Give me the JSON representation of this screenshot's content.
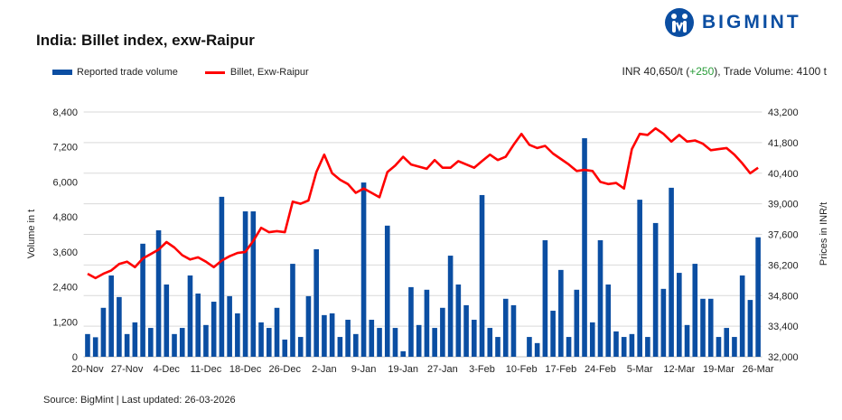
{
  "header": {
    "title": "India: Billet index, exw-Raipur",
    "logo_text": "BIGMINT",
    "summary_price": "INR 40,650/t (",
    "summary_change": "+250",
    "summary_rest": "), Trade Volume: 4100 t"
  },
  "footer": {
    "source": "Source: BigMint | Last updated: 26-03-2026"
  },
  "colors": {
    "bars": "#0b4ea2",
    "line": "#ff0000",
    "change_positive": "#2a9d3a",
    "grid": "#d9d9d9"
  },
  "chart_data": {
    "type": "bar+line",
    "ylabel": "Volume in t",
    "y2label": "Prices in INR/t",
    "ylim": [
      0,
      8400
    ],
    "yticks": [
      "0",
      "1,200",
      "2,400",
      "3,600",
      "4,800",
      "6,000",
      "7,200",
      "8,400"
    ],
    "y2lim": [
      32000,
      43200
    ],
    "y2ticks": [
      "32,000",
      "33,400",
      "34,800",
      "36,200",
      "37,600",
      "39,000",
      "40,400",
      "41,800",
      "43,200"
    ],
    "grid": true,
    "legend_position": "top-left",
    "xticks": [
      {
        "index": 0,
        "label": "20-Nov"
      },
      {
        "index": 5,
        "label": "27-Nov"
      },
      {
        "index": 10,
        "label": "4-Dec"
      },
      {
        "index": 15,
        "label": "11-Dec"
      },
      {
        "index": 20,
        "label": "18-Dec"
      },
      {
        "index": 25,
        "label": "26-Dec"
      },
      {
        "index": 30,
        "label": "2-Jan"
      },
      {
        "index": 35,
        "label": "9-Jan"
      },
      {
        "index": 40,
        "label": "19-Jan"
      },
      {
        "index": 45,
        "label": "27-Jan"
      },
      {
        "index": 50,
        "label": "3-Feb"
      },
      {
        "index": 55,
        "label": "10-Feb"
      },
      {
        "index": 60,
        "label": "17-Feb"
      },
      {
        "index": 65,
        "label": "24-Feb"
      },
      {
        "index": 70,
        "label": "5-Mar"
      },
      {
        "index": 75,
        "label": "12-Mar"
      },
      {
        "index": 80,
        "label": "19-Mar"
      },
      {
        "index": 85,
        "label": "26-Mar"
      }
    ],
    "series": [
      {
        "name": "Reported trade volume",
        "type": "bar",
        "axis": "left",
        "values": [
          780,
          670,
          1680,
          2790,
          2050,
          780,
          1180,
          3880,
          990,
          4340,
          2480,
          780,
          990,
          2790,
          2170,
          1090,
          1890,
          5490,
          2080,
          1490,
          4990,
          4990,
          1180,
          990,
          1680,
          590,
          3190,
          680,
          2080,
          3690,
          1430,
          1490,
          680,
          1270,
          780,
          5980,
          1270,
          990,
          4500,
          990,
          190,
          2390,
          1090,
          2300,
          990,
          1680,
          3470,
          2480,
          1770,
          1270,
          5550,
          990,
          680,
          1990,
          1770,
          0,
          680,
          470,
          4000,
          1580,
          2980,
          680,
          2300,
          7500,
          1180,
          4000,
          2480,
          870,
          680,
          780,
          5390,
          680,
          4590,
          2330,
          5800,
          2880,
          1090,
          3190,
          1990,
          1990,
          680,
          990,
          680,
          2790,
          1950,
          4100
        ]
      },
      {
        "name": "Billet, Exw-Raipur",
        "type": "line",
        "axis": "right",
        "values": [
          35800,
          35600,
          35800,
          35950,
          36250,
          36350,
          36100,
          36500,
          36700,
          36900,
          37250,
          37000,
          36650,
          36450,
          36550,
          36350,
          36100,
          36400,
          36600,
          36750,
          36800,
          37300,
          37900,
          37700,
          37750,
          37700,
          39100,
          39000,
          39150,
          40450,
          41250,
          40400,
          40100,
          39900,
          39500,
          39700,
          39500,
          39300,
          40450,
          40750,
          41150,
          40800,
          40700,
          40600,
          41000,
          40650,
          40650,
          40950,
          40800,
          40650,
          40950,
          41250,
          41000,
          41150,
          41700,
          42200,
          41700,
          41550,
          41650,
          41300,
          41050,
          40800,
          40500,
          40550,
          40500,
          40000,
          39900,
          39950,
          39700,
          41500,
          42200,
          42150,
          42450,
          42200,
          41850,
          42150,
          41850,
          41900,
          41750,
          41450,
          41500,
          41550,
          41250,
          40850,
          40400,
          40650
        ]
      }
    ]
  }
}
